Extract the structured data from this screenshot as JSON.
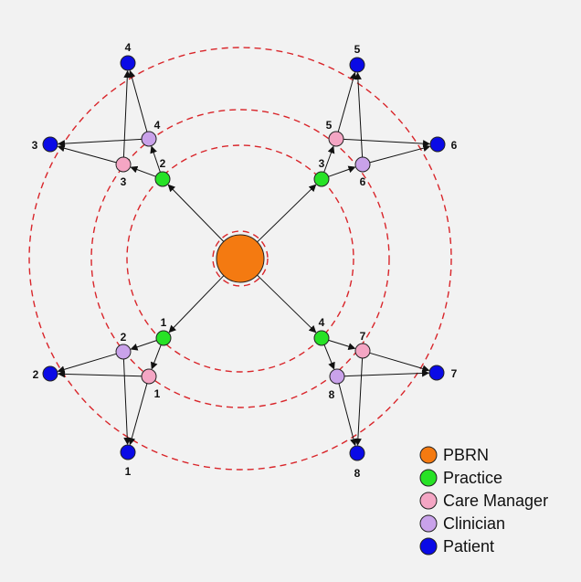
{
  "colors": {
    "pbrn": "#f47a11",
    "practice": "#27e226",
    "care_manager": "#f4a6c4",
    "clinician": "#c9a2ea",
    "patient": "#0a0ae6",
    "ring": "#d9252a",
    "edge": "#111111"
  },
  "legend": [
    {
      "key": "pbrn",
      "label": "PBRN",
      "icon": "orange-circle-icon"
    },
    {
      "key": "practice",
      "label": "Practice",
      "icon": "green-circle-icon"
    },
    {
      "key": "care_manager",
      "label": "Care Manager",
      "icon": "pink-circle-icon"
    },
    {
      "key": "clinician",
      "label": "Clinician",
      "icon": "lavender-circle-icon"
    },
    {
      "key": "patient",
      "label": "Patient",
      "icon": "blue-circle-icon"
    }
  ],
  "nodes": {
    "pbrn": {
      "type": "pbrn",
      "label": ""
    },
    "practice": [
      {
        "id": "pr1",
        "label": "1"
      },
      {
        "id": "pr2",
        "label": "2"
      },
      {
        "id": "pr3",
        "label": "3"
      },
      {
        "id": "pr4",
        "label": "4"
      }
    ],
    "care_managers": [
      {
        "id": "cm1",
        "label": "1"
      },
      {
        "id": "cm3",
        "label": "3"
      },
      {
        "id": "cm5",
        "label": "5"
      },
      {
        "id": "cm7",
        "label": "7"
      }
    ],
    "clinicians": [
      {
        "id": "cl2",
        "label": "2"
      },
      {
        "id": "cl4",
        "label": "4"
      },
      {
        "id": "cl6",
        "label": "6"
      },
      {
        "id": "cl8",
        "label": "8"
      }
    ],
    "patients": [
      {
        "id": "pa1",
        "label": "1"
      },
      {
        "id": "pa2",
        "label": "2"
      },
      {
        "id": "pa3",
        "label": "3"
      },
      {
        "id": "pa4",
        "label": "4"
      },
      {
        "id": "pa5",
        "label": "5"
      },
      {
        "id": "pa6",
        "label": "6"
      },
      {
        "id": "pa7",
        "label": "7"
      },
      {
        "id": "pa8",
        "label": "8"
      }
    ]
  },
  "edges": [
    [
      "pbrn",
      "pr1"
    ],
    [
      "pbrn",
      "pr2"
    ],
    [
      "pbrn",
      "pr3"
    ],
    [
      "pbrn",
      "pr4"
    ],
    [
      "pr2",
      "cm3"
    ],
    [
      "pr2",
      "cl4"
    ],
    [
      "cm3",
      "pa3"
    ],
    [
      "cm3",
      "pa4"
    ],
    [
      "cl4",
      "pa3"
    ],
    [
      "cl4",
      "pa4"
    ],
    [
      "pr3",
      "cm5"
    ],
    [
      "pr3",
      "cl6"
    ],
    [
      "cm5",
      "pa5"
    ],
    [
      "cm5",
      "pa6"
    ],
    [
      "cl6",
      "pa5"
    ],
    [
      "cl6",
      "pa6"
    ],
    [
      "pr1",
      "cl2"
    ],
    [
      "pr1",
      "cm1"
    ],
    [
      "cl2",
      "pa2"
    ],
    [
      "cl2",
      "pa1"
    ],
    [
      "cm1",
      "pa2"
    ],
    [
      "cm1",
      "pa1"
    ],
    [
      "pr4",
      "cm7"
    ],
    [
      "pr4",
      "cl8"
    ],
    [
      "cm7",
      "pa7"
    ],
    [
      "cm7",
      "pa8"
    ],
    [
      "cl8",
      "pa7"
    ],
    [
      "cl8",
      "pa8"
    ]
  ]
}
